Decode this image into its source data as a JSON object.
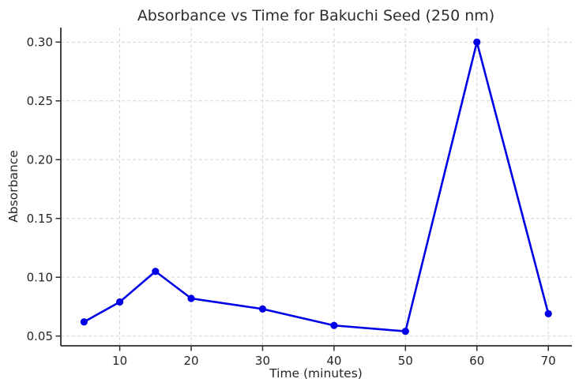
{
  "chart_data": {
    "type": "line",
    "title": "Absorbance vs Time for Bakuchi Seed (250 nm)",
    "xlabel": "Time (minutes)",
    "ylabel": "Absorbance",
    "x": [
      5,
      10,
      15,
      20,
      30,
      40,
      50,
      60,
      70
    ],
    "y": [
      0.062,
      0.079,
      0.105,
      0.082,
      0.073,
      0.059,
      0.054,
      0.3,
      0.069
    ],
    "series_name": "Absorbance",
    "xticks": [
      10,
      20,
      30,
      40,
      50,
      60,
      70
    ],
    "yticks": [
      0.05,
      0.1,
      0.15,
      0.2,
      0.25,
      0.3
    ],
    "ytick_labels": [
      "0.05",
      "0.10",
      "0.15",
      "0.20",
      "0.25",
      "0.30"
    ],
    "xlim": [
      1.75,
      73.3
    ],
    "ylim": [
      0.0417,
      0.3123
    ],
    "grid": true,
    "grid_style": "dashed",
    "legend": "none",
    "line_color": "#0000e6",
    "marker": "circle",
    "marker_color": "#0000e6",
    "grid_color": "#d5d5d5",
    "spine_color": "#2e2e2e",
    "text_color": "#262626",
    "background_color": "#ffffff"
  }
}
